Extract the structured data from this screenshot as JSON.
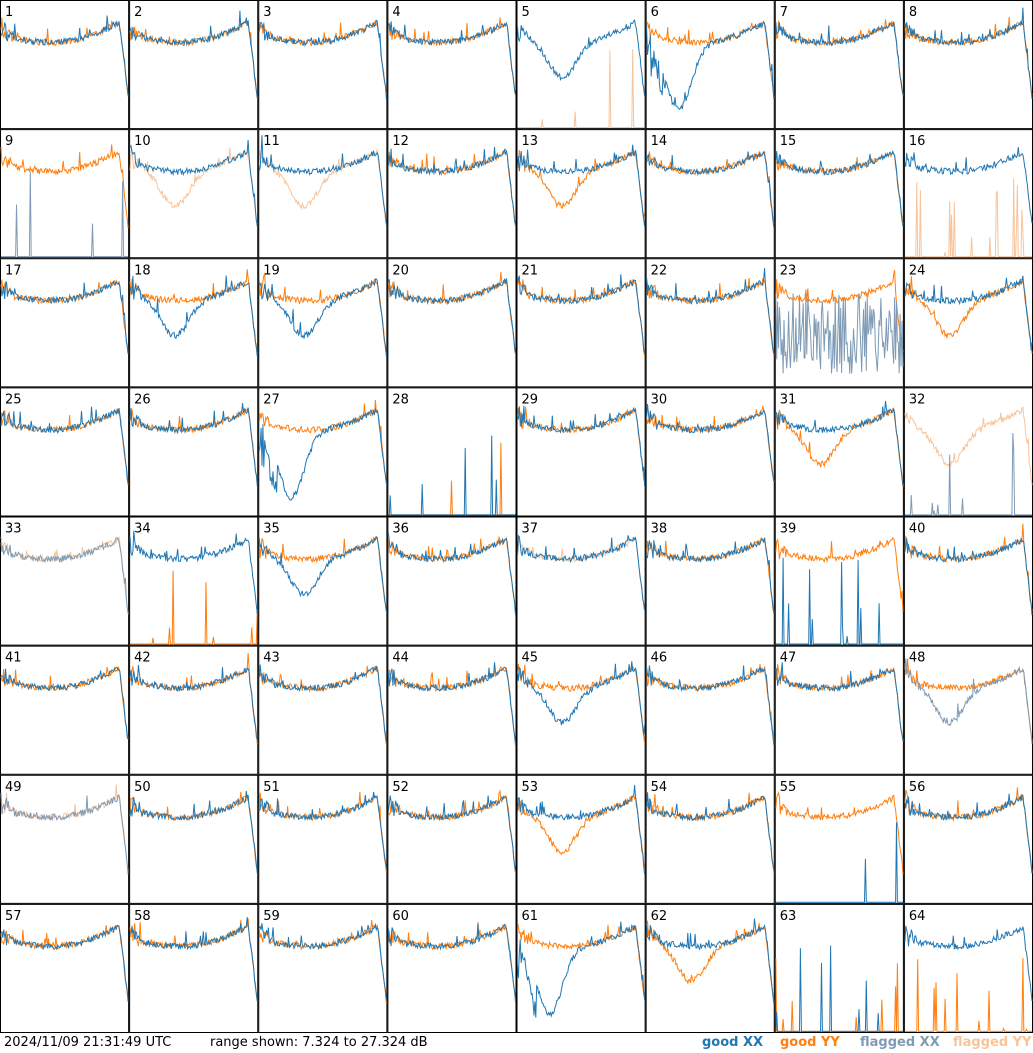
{
  "footer": {
    "timestamp": "2024/11/09 21:31:49 UTC",
    "range_text": "range shown: 7.324 to 27.324 dB"
  },
  "legend": [
    {
      "label": "good XX",
      "color": "#1f77b4"
    },
    {
      "label": "good YY",
      "color": "#ff7f0e"
    },
    {
      "label": "flagged XX",
      "color": "#7f9bb5"
    },
    {
      "label": "flagged YY",
      "color": "#f8c49a"
    }
  ],
  "chart_data": {
    "type": "line",
    "title": "",
    "ylim": [
      7.324,
      27.324
    ],
    "grid_layout": "8x8",
    "colors": {
      "good_xx": "#1f77b4",
      "good_yy": "#ff7f0e",
      "flagged_xx": "#7f9bb5",
      "flagged_yy": "#f8c49a"
    },
    "panels": [
      {
        "id": "1",
        "xx": "good",
        "yy": "good",
        "x_shape": "normal",
        "y_shape": "dropout"
      },
      {
        "id": "2",
        "xx": "good",
        "yy": "good",
        "x_shape": "normal",
        "y_shape": "normal"
      },
      {
        "id": "3",
        "xx": "good",
        "yy": "good",
        "x_shape": "normal",
        "y_shape": "normal"
      },
      {
        "id": "4",
        "xx": "good",
        "yy": "good",
        "x_shape": "normal",
        "y_shape": "normal"
      },
      {
        "id": "5",
        "xx": "good",
        "yy": "flagged",
        "x_shape": "dip",
        "y_shape": "dead"
      },
      {
        "id": "6",
        "xx": "good",
        "yy": "good",
        "x_shape": "deep",
        "y_shape": "normal"
      },
      {
        "id": "7",
        "xx": "good",
        "yy": "good",
        "x_shape": "normal",
        "y_shape": "normal"
      },
      {
        "id": "8",
        "xx": "good",
        "yy": "good",
        "x_shape": "normal",
        "y_shape": "normal"
      },
      {
        "id": "9",
        "xx": "flagged",
        "yy": "good",
        "x_shape": "dead",
        "y_shape": "normal"
      },
      {
        "id": "10",
        "xx": "good",
        "yy": "flagged",
        "x_shape": "normal",
        "y_shape": "dip"
      },
      {
        "id": "11",
        "xx": "good",
        "yy": "flagged",
        "x_shape": "normal",
        "y_shape": "dip"
      },
      {
        "id": "12",
        "xx": "good",
        "yy": "good",
        "x_shape": "normal",
        "y_shape": "normal"
      },
      {
        "id": "13",
        "xx": "good",
        "yy": "good",
        "x_shape": "normal",
        "y_shape": "dip"
      },
      {
        "id": "14",
        "xx": "good",
        "yy": "good",
        "x_shape": "normal",
        "y_shape": "normal"
      },
      {
        "id": "15",
        "xx": "good",
        "yy": "good",
        "x_shape": "normal",
        "y_shape": "normal"
      },
      {
        "id": "16",
        "xx": "good",
        "yy": "flagged",
        "x_shape": "normal",
        "y_shape": "dead"
      },
      {
        "id": "17",
        "xx": "good",
        "yy": "good",
        "x_shape": "normal",
        "y_shape": "normal"
      },
      {
        "id": "18",
        "xx": "good",
        "yy": "good",
        "x_shape": "dip",
        "y_shape": "normal"
      },
      {
        "id": "19",
        "xx": "good",
        "yy": "good",
        "x_shape": "dip",
        "y_shape": "normal"
      },
      {
        "id": "20",
        "xx": "good",
        "yy": "good",
        "x_shape": "normal",
        "y_shape": "normal"
      },
      {
        "id": "21",
        "xx": "good",
        "yy": "good",
        "x_shape": "normal",
        "y_shape": "normal"
      },
      {
        "id": "22",
        "xx": "good",
        "yy": "good",
        "x_shape": "normal",
        "y_shape": "normal"
      },
      {
        "id": "23",
        "xx": "flagged",
        "yy": "good",
        "x_shape": "noisy",
        "y_shape": "normal"
      },
      {
        "id": "24",
        "xx": "good",
        "yy": "good",
        "x_shape": "normal",
        "y_shape": "dip"
      },
      {
        "id": "25",
        "xx": "good",
        "yy": "good",
        "x_shape": "normal",
        "y_shape": "normal"
      },
      {
        "id": "26",
        "xx": "good",
        "yy": "good",
        "x_shape": "normal",
        "y_shape": "normal"
      },
      {
        "id": "27",
        "xx": "good",
        "yy": "good",
        "x_shape": "deep",
        "y_shape": "normal"
      },
      {
        "id": "28",
        "xx": "good",
        "yy": "good",
        "x_shape": "dead",
        "y_shape": "dead"
      },
      {
        "id": "29",
        "xx": "good",
        "yy": "good",
        "x_shape": "normal",
        "y_shape": "normal"
      },
      {
        "id": "30",
        "xx": "good",
        "yy": "good",
        "x_shape": "normal",
        "y_shape": "normal"
      },
      {
        "id": "31",
        "xx": "good",
        "yy": "good",
        "x_shape": "normal",
        "y_shape": "dip"
      },
      {
        "id": "32",
        "xx": "flagged",
        "yy": "flagged",
        "x_shape": "dead",
        "y_shape": "dip"
      },
      {
        "id": "33",
        "xx": "flagged",
        "yy": "flagged",
        "x_shape": "normal",
        "y_shape": "normal"
      },
      {
        "id": "34",
        "xx": "good",
        "yy": "good",
        "x_shape": "normal",
        "y_shape": "dead"
      },
      {
        "id": "35",
        "xx": "good",
        "yy": "good",
        "x_shape": "dip",
        "y_shape": "normal"
      },
      {
        "id": "36",
        "xx": "good",
        "yy": "good",
        "x_shape": "normal",
        "y_shape": "normal"
      },
      {
        "id": "37",
        "xx": "good",
        "yy": "flagged",
        "x_shape": "normal",
        "y_shape": "normal"
      },
      {
        "id": "38",
        "xx": "good",
        "yy": "good",
        "x_shape": "normal",
        "y_shape": "normal"
      },
      {
        "id": "39",
        "xx": "good",
        "yy": "good",
        "x_shape": "dead",
        "y_shape": "normal"
      },
      {
        "id": "40",
        "xx": "good",
        "yy": "good",
        "x_shape": "normal",
        "y_shape": "normal"
      },
      {
        "id": "41",
        "xx": "good",
        "yy": "good",
        "x_shape": "normal",
        "y_shape": "normal"
      },
      {
        "id": "42",
        "xx": "good",
        "yy": "good",
        "x_shape": "normal",
        "y_shape": "normal"
      },
      {
        "id": "43",
        "xx": "good",
        "yy": "good",
        "x_shape": "normal",
        "y_shape": "normal"
      },
      {
        "id": "44",
        "xx": "good",
        "yy": "good",
        "x_shape": "normal",
        "y_shape": "normal"
      },
      {
        "id": "45",
        "xx": "good",
        "yy": "good",
        "x_shape": "dip",
        "y_shape": "normal"
      },
      {
        "id": "46",
        "xx": "good",
        "yy": "good",
        "x_shape": "normal",
        "y_shape": "normal"
      },
      {
        "id": "47",
        "xx": "good",
        "yy": "good",
        "x_shape": "normal",
        "y_shape": "normal"
      },
      {
        "id": "48",
        "xx": "flagged",
        "yy": "good",
        "x_shape": "dip",
        "y_shape": "normal"
      },
      {
        "id": "49",
        "xx": "flagged",
        "yy": "flagged",
        "x_shape": "normal",
        "y_shape": "normal"
      },
      {
        "id": "50",
        "xx": "good",
        "yy": "good",
        "x_shape": "normal",
        "y_shape": "normal"
      },
      {
        "id": "51",
        "xx": "good",
        "yy": "good",
        "x_shape": "normal",
        "y_shape": "normal"
      },
      {
        "id": "52",
        "xx": "good",
        "yy": "good",
        "x_shape": "normal",
        "y_shape": "normal"
      },
      {
        "id": "53",
        "xx": "good",
        "yy": "good",
        "x_shape": "normal",
        "y_shape": "dip"
      },
      {
        "id": "54",
        "xx": "good",
        "yy": "good",
        "x_shape": "normal",
        "y_shape": "normal"
      },
      {
        "id": "55",
        "xx": "good",
        "yy": "good",
        "x_shape": "dead",
        "y_shape": "normal"
      },
      {
        "id": "56",
        "xx": "good",
        "yy": "good",
        "x_shape": "normal",
        "y_shape": "normal"
      },
      {
        "id": "57",
        "xx": "good",
        "yy": "good",
        "x_shape": "normal",
        "y_shape": "normal"
      },
      {
        "id": "58",
        "xx": "good",
        "yy": "good",
        "x_shape": "normal",
        "y_shape": "normal"
      },
      {
        "id": "59",
        "xx": "good",
        "yy": "good",
        "x_shape": "normal",
        "y_shape": "normal"
      },
      {
        "id": "60",
        "xx": "good",
        "yy": "good",
        "x_shape": "normal",
        "y_shape": "normal"
      },
      {
        "id": "61",
        "xx": "good",
        "yy": "good",
        "x_shape": "deep",
        "y_shape": "normal"
      },
      {
        "id": "62",
        "xx": "good",
        "yy": "good",
        "x_shape": "normal",
        "y_shape": "dip"
      },
      {
        "id": "63",
        "xx": "good",
        "yy": "good",
        "x_shape": "dead",
        "y_shape": "dead"
      },
      {
        "id": "64",
        "xx": "good",
        "yy": "good",
        "x_shape": "normal",
        "y_shape": "dead"
      }
    ]
  }
}
